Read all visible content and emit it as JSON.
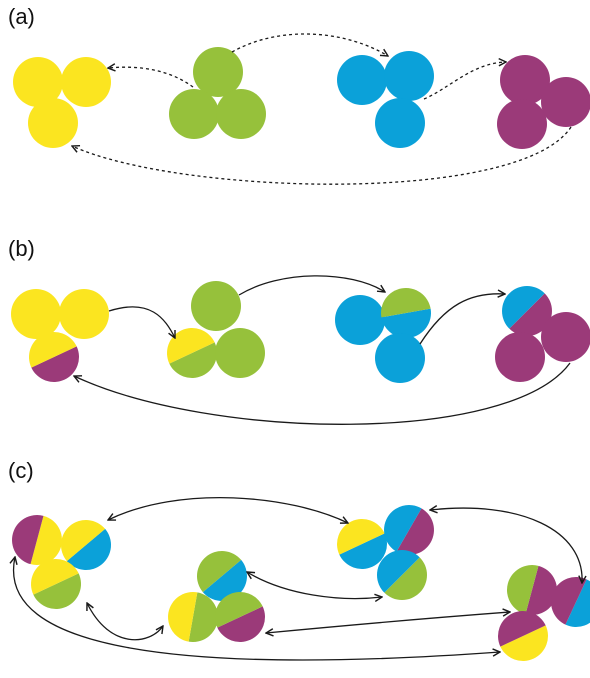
{
  "panels": [
    {
      "label": "(a)"
    },
    {
      "label": "(b)"
    },
    {
      "label": "(c)"
    }
  ],
  "colors": {
    "yellow": "#fbe520",
    "green": "#96c13b",
    "blue": "#0ba1d9",
    "purple": "#9b3a79",
    "arrow": "#1a1a1a"
  }
}
